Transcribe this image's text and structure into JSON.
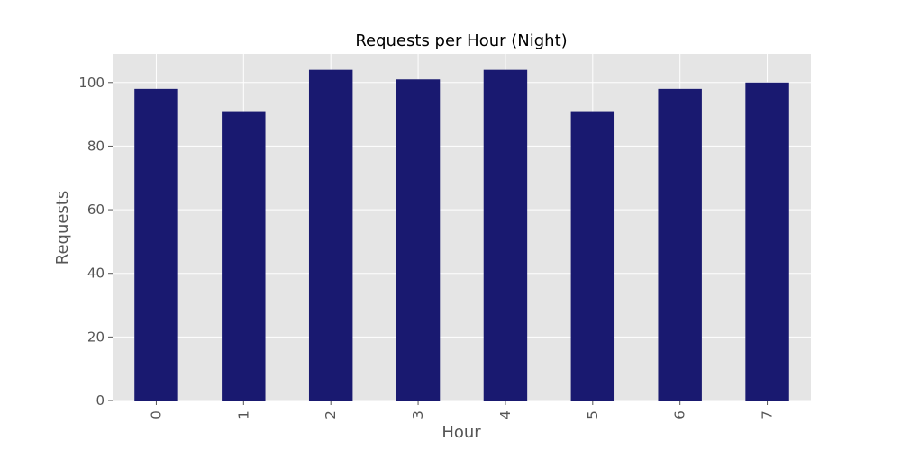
{
  "chart_data": {
    "type": "bar",
    "title": "Requests per Hour (Night)",
    "xlabel": "Hour",
    "ylabel": "Requests",
    "categories": [
      "0",
      "1",
      "2",
      "3",
      "4",
      "5",
      "6",
      "7"
    ],
    "values": [
      98,
      91,
      104,
      101,
      104,
      91,
      98,
      100
    ],
    "ylim": [
      0,
      109
    ],
    "yticks": [
      "0",
      "20",
      "40",
      "60",
      "80",
      "100"
    ],
    "grid": true,
    "legend": "none",
    "colors": {
      "bar": "#191970",
      "plot_background": "#e5e5e5",
      "grid": "#ffffff",
      "tick": "#555555"
    }
  }
}
